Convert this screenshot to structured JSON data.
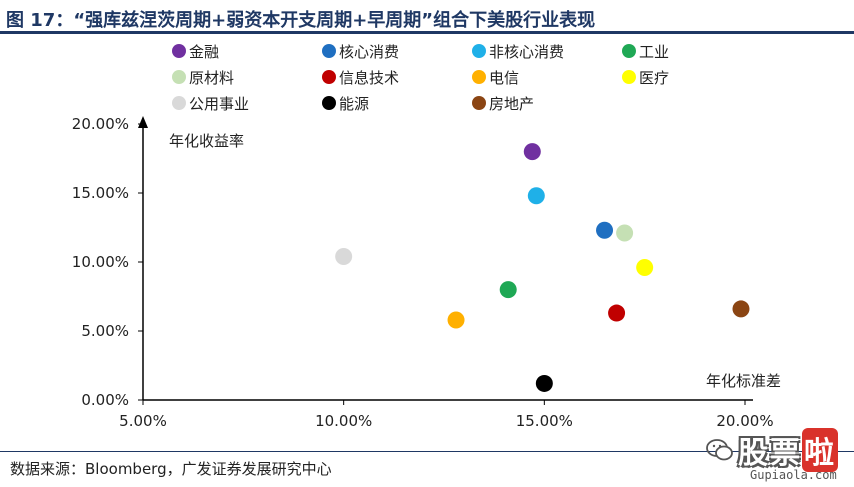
{
  "title": "图 17：“强库兹涅茨周期+弱资本开支周期+早周期”组合下美股行业表现",
  "source": "数据来源：Bloomberg，广发证券发展研究中心",
  "watermark": {
    "logo_text": "股票",
    "logo_accent": "啦",
    "url": "Gupiaola.com"
  },
  "chart_data": {
    "type": "scatter",
    "title": "图 17：“强库兹涅茨周期+弱资本开支周期+早周期”组合下美股行业表现",
    "xlabel": "年化标准差",
    "ylabel": "年化收益率",
    "xlim": [
      0.05,
      0.2
    ],
    "ylim": [
      0,
      0.2
    ],
    "x_ticks": [
      0.05,
      0.1,
      0.15,
      0.2
    ],
    "x_tick_labels": [
      "5.00%",
      "10.00%",
      "15.00%",
      "20.00%"
    ],
    "y_ticks": [
      0,
      0.05,
      0.1,
      0.15,
      0.2
    ],
    "y_tick_labels": [
      "0.00%",
      "5.00%",
      "10.00%",
      "15.00%",
      "20.00%"
    ],
    "grid": false,
    "legend_position": "top",
    "series": [
      {
        "name": "金融",
        "color": "#7030a0",
        "x": 0.147,
        "y": 0.18
      },
      {
        "name": "核心消费",
        "color": "#1f6fc1",
        "x": 0.165,
        "y": 0.123
      },
      {
        "name": "非核心消费",
        "color": "#1fb0e8",
        "x": 0.148,
        "y": 0.148
      },
      {
        "name": "工业",
        "color": "#1fa855",
        "x": 0.141,
        "y": 0.08
      },
      {
        "name": "原材料",
        "color": "#c5e0b4",
        "x": 0.17,
        "y": 0.121
      },
      {
        "name": "信息技术",
        "color": "#c00000",
        "x": 0.168,
        "y": 0.063
      },
      {
        "name": "电信",
        "color": "#ffb000",
        "x": 0.128,
        "y": 0.058
      },
      {
        "name": "医疗",
        "color": "#ffff00",
        "x": 0.175,
        "y": 0.096
      },
      {
        "name": "公用事业",
        "color": "#d9d9d9",
        "x": 0.1,
        "y": 0.104
      },
      {
        "name": "能源",
        "color": "#000000",
        "x": 0.15,
        "y": 0.012
      },
      {
        "name": "房地产",
        "color": "#8b4513",
        "x": 0.199,
        "y": 0.066
      }
    ]
  }
}
